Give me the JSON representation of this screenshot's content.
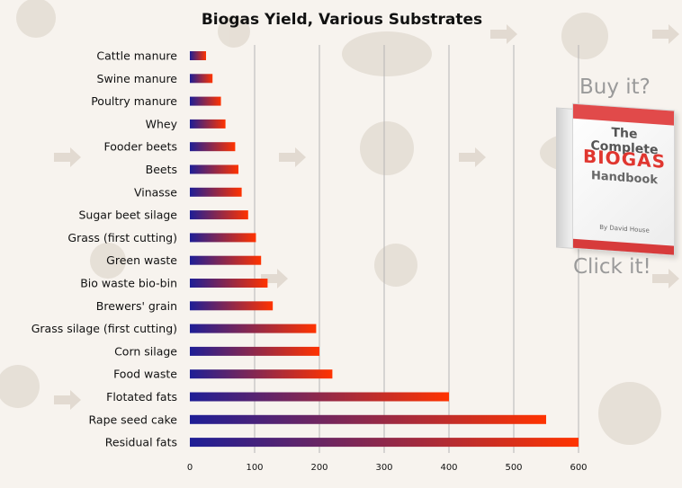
{
  "chart_data": {
    "type": "bar",
    "orientation": "horizontal",
    "title": "Biogas Yield, Various Substrates",
    "xlabel": "",
    "ylabel": "",
    "xlim": [
      0,
      600
    ],
    "x_ticks": [
      0,
      100,
      200,
      300,
      400,
      500,
      600
    ],
    "grid": true,
    "categories": [
      "Cattle manure",
      "Swine manure",
      "Poultry manure",
      "Whey",
      "Fooder beets",
      "Beets",
      "Vinasse",
      "Sugar beet silage",
      "Grass (first cutting)",
      "Green waste",
      "Bio waste bio-bin",
      "Brewers' grain",
      "Grass silage (first cutting)",
      "Corn silage",
      "Food waste",
      "Flotated fats",
      "Rape seed cake",
      "Residual fats"
    ],
    "values": [
      25,
      35,
      48,
      55,
      70,
      75,
      80,
      90,
      102,
      110,
      120,
      128,
      195,
      200,
      220,
      400,
      550,
      600
    ]
  },
  "colors": {
    "bar_start": "#1e1e96",
    "bar_end": "#ff3300",
    "grid": "#b5b5b5",
    "background": "#f7f3ee"
  },
  "promo": {
    "buy_text": "Buy it?",
    "click_text": "Click it!",
    "book_title_line1": "The Complete",
    "book_title_line2": "BIOGAS",
    "book_title_line3": "Handbook",
    "book_author": "By David House"
  }
}
